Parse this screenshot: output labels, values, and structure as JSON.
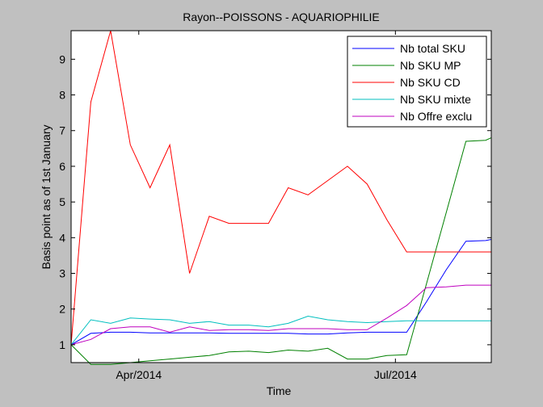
{
  "window": {
    "background": "#c0c0c0",
    "axes_background": "#ffffff"
  },
  "chart_data": {
    "type": "line",
    "title": "Rayon--POISSONS - AQUARIOPHILIE",
    "xlabel": "Time",
    "ylabel": "Basis point as of 1st January",
    "x_tick_labels": [
      "Apr/2014",
      "Jul/2014"
    ],
    "x_tick_dates": [
      "2014-04-01",
      "2014-07-01"
    ],
    "xlim": [
      "2014-03-08",
      "2014-08-04"
    ],
    "x": [
      "2014-03-08",
      "2014-03-15",
      "2014-03-22",
      "2014-03-29",
      "2014-04-05",
      "2014-04-12",
      "2014-04-19",
      "2014-04-26",
      "2014-05-03",
      "2014-05-10",
      "2014-05-17",
      "2014-05-24",
      "2014-05-31",
      "2014-06-07",
      "2014-06-14",
      "2014-06-21",
      "2014-06-28",
      "2014-07-05",
      "2014-07-12",
      "2014-07-19",
      "2014-07-26",
      "2014-08-02",
      "2014-08-04"
    ],
    "ylim": [
      0.5,
      9.8
    ],
    "y_ticks": [
      1,
      2,
      3,
      4,
      5,
      6,
      7,
      8,
      9
    ],
    "legend_position": "top-right",
    "grid": false,
    "series": [
      {
        "name": "Nb total SKU",
        "color": "#0000ff",
        "values": [
          1.0,
          1.32,
          1.35,
          1.35,
          1.33,
          1.33,
          1.33,
          1.33,
          1.32,
          1.32,
          1.32,
          1.32,
          1.3,
          1.3,
          1.33,
          1.35,
          1.35,
          1.35,
          2.2,
          3.1,
          3.9,
          3.92,
          3.95
        ]
      },
      {
        "name": "Nb SKU MP",
        "color": "#008000",
        "values": [
          1.0,
          0.45,
          0.45,
          0.5,
          0.55,
          0.6,
          0.65,
          0.7,
          0.8,
          0.82,
          0.78,
          0.85,
          0.82,
          0.9,
          0.6,
          0.6,
          0.7,
          0.72,
          2.7,
          4.7,
          6.7,
          6.73,
          6.8
        ]
      },
      {
        "name": "Nb SKU CD",
        "color": "#ff0000",
        "values": [
          1.0,
          7.8,
          9.8,
          6.6,
          5.4,
          6.6,
          3.0,
          4.6,
          4.4,
          4.4,
          4.4,
          5.4,
          5.2,
          5.6,
          6.0,
          5.5,
          4.5,
          3.6,
          3.6,
          3.6,
          3.6,
          3.6,
          3.6
        ]
      },
      {
        "name": "Nb SKU mixte",
        "color": "#00bfbf",
        "values": [
          1.0,
          1.7,
          1.6,
          1.75,
          1.72,
          1.7,
          1.6,
          1.65,
          1.55,
          1.55,
          1.5,
          1.6,
          1.8,
          1.7,
          1.65,
          1.62,
          1.65,
          1.67,
          1.67,
          1.67,
          1.67,
          1.67,
          1.67
        ]
      },
      {
        "name": "Nb Offre exclu",
        "color": "#bf00bf",
        "values": [
          1.0,
          1.15,
          1.45,
          1.5,
          1.5,
          1.35,
          1.5,
          1.4,
          1.42,
          1.42,
          1.4,
          1.45,
          1.45,
          1.45,
          1.42,
          1.42,
          1.75,
          2.1,
          2.6,
          2.62,
          2.67,
          2.67,
          2.67
        ]
      }
    ]
  }
}
